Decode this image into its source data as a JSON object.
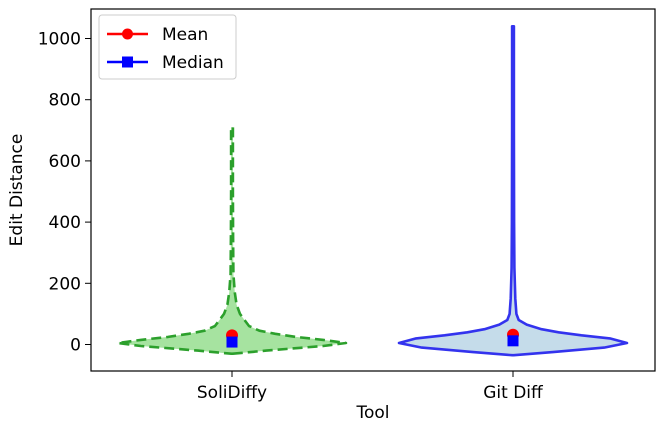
{
  "chart_data": {
    "type": "violin",
    "title": "",
    "xlabel": "Tool",
    "ylabel": "Edit Distance",
    "ylim": [
      -90,
      1095
    ],
    "yticks": [
      0,
      200,
      400,
      600,
      800,
      1000
    ],
    "categories": [
      "SoliDiffy",
      "Git Diff"
    ],
    "legend": {
      "position": "top-left",
      "entries": [
        {
          "label": "Mean",
          "marker": "circle",
          "color": "#ff0000"
        },
        {
          "label": "Median",
          "marker": "square",
          "color": "#0000ff"
        }
      ]
    },
    "series": [
      {
        "name": "SoliDiffy",
        "fill_color": "#a6e3a0",
        "line_color": "#2ca02c",
        "line_style": "dashed",
        "range": [
          -30,
          710
        ],
        "mean": 30,
        "median": 8,
        "density": [
          [
            -30,
            0.0
          ],
          [
            -20,
            0.3
          ],
          [
            -5,
            0.8
          ],
          [
            5,
            1.0
          ],
          [
            15,
            0.8
          ],
          [
            25,
            0.56
          ],
          [
            35,
            0.38
          ],
          [
            45,
            0.24
          ],
          [
            60,
            0.15
          ],
          [
            80,
            0.11
          ],
          [
            100,
            0.07
          ],
          [
            130,
            0.04
          ],
          [
            170,
            0.025
          ],
          [
            230,
            0.012
          ],
          [
            350,
            0.01
          ],
          [
            500,
            0.008
          ],
          [
            710,
            0.008
          ]
        ]
      },
      {
        "name": "Git Diff",
        "fill_color": "#c5dcea",
        "line_color": "#3333ee",
        "line_style": "solid",
        "range": [
          -35,
          1040
        ],
        "mean": 32,
        "median": 12,
        "density": [
          [
            -35,
            0.0
          ],
          [
            -25,
            0.35
          ],
          [
            -10,
            0.8
          ],
          [
            5,
            1.0
          ],
          [
            20,
            0.85
          ],
          [
            30,
            0.6
          ],
          [
            40,
            0.4
          ],
          [
            50,
            0.25
          ],
          [
            65,
            0.12
          ],
          [
            80,
            0.05
          ],
          [
            100,
            0.03
          ],
          [
            150,
            0.02
          ],
          [
            250,
            0.012
          ],
          [
            400,
            0.01
          ],
          [
            700,
            0.008
          ],
          [
            1040,
            0.008
          ]
        ]
      }
    ]
  }
}
